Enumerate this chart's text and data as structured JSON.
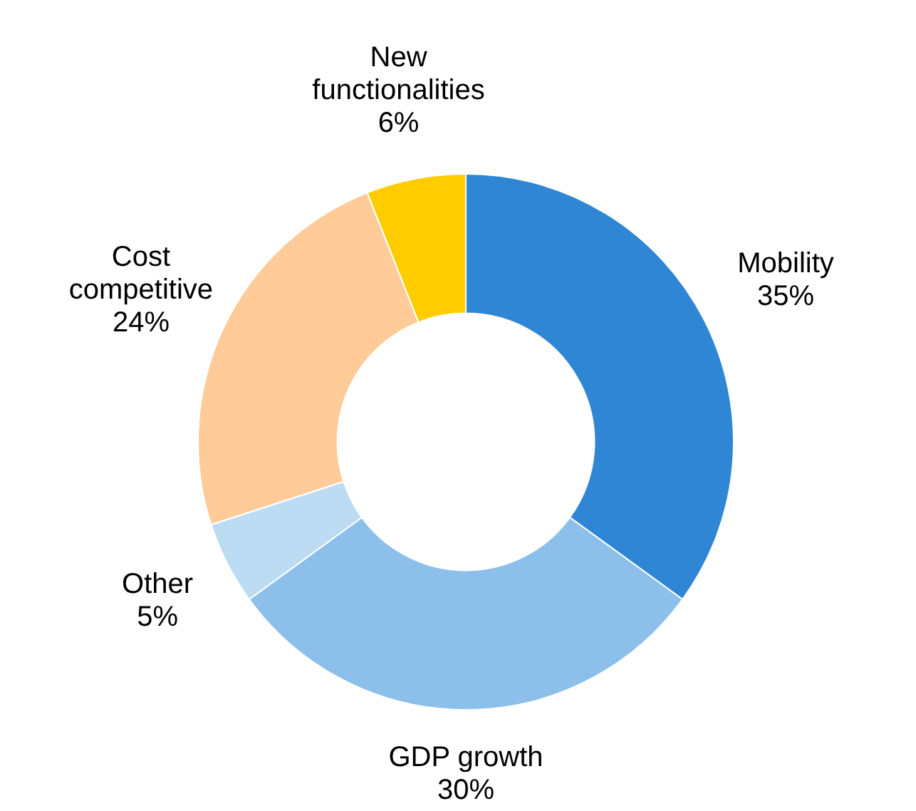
{
  "chart_data": {
    "type": "donut",
    "categories": [
      "Mobility",
      "GDP growth",
      "Other",
      "Cost competitive",
      "New functionalities"
    ],
    "values": [
      35,
      30,
      5,
      24,
      6
    ],
    "colors": [
      "#2e86d4",
      "#8cbfea",
      "#bcdcf4",
      "#ffcc99",
      "#ffcc00"
    ],
    "value_labels": [
      "35%",
      "30%",
      "5%",
      "24%",
      "6%"
    ]
  }
}
